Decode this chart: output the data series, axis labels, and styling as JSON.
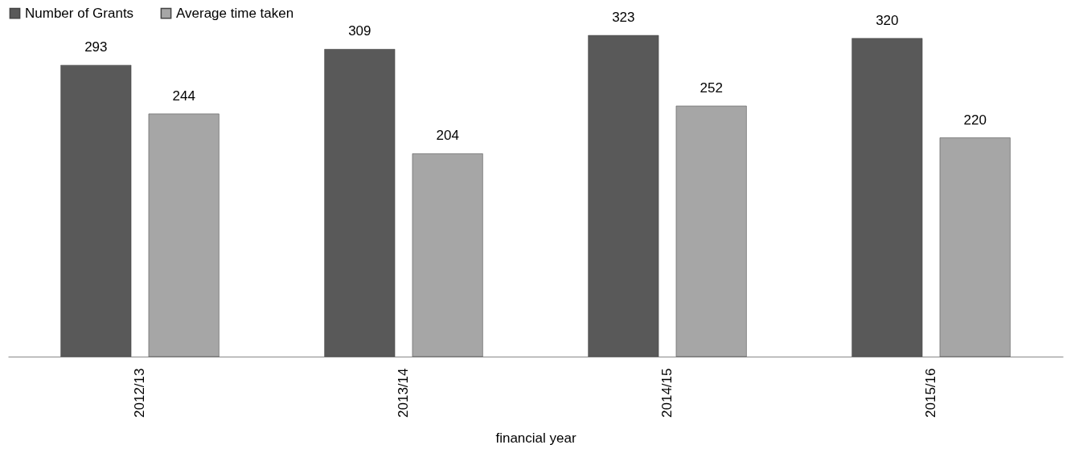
{
  "chart_data": {
    "type": "bar",
    "xlabel": "financial year",
    "categories": [
      "2012/13",
      "2013/14",
      "2014/15",
      "2015/16"
    ],
    "series": [
      {
        "name": "Number of Grants",
        "color": "#595959",
        "values": [
          293,
          309,
          323,
          320
        ]
      },
      {
        "name": "Average time taken",
        "color": "#a6a6a6",
        "values": [
          244,
          204,
          252,
          220
        ]
      }
    ],
    "data_labels": true,
    "legend": "top"
  }
}
